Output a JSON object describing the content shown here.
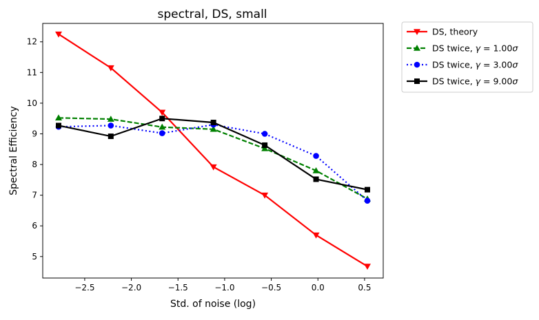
{
  "chart_data": {
    "type": "line",
    "title": "spectral, DS, small",
    "xlabel": "Std. of noise (log)",
    "ylabel": "Spectral Efficiency",
    "xlim": [
      -2.95,
      0.7
    ],
    "ylim": [
      4.3,
      12.6
    ],
    "x_ticks": [
      -2.5,
      -2.0,
      -1.5,
      -1.0,
      -0.5,
      0.0,
      0.5
    ],
    "x_tick_labels": [
      "−2.5",
      "−2.0",
      "−1.5",
      "−1.0",
      "−0.5",
      "0.0",
      "0.5"
    ],
    "y_ticks": [
      5,
      6,
      7,
      8,
      9,
      10,
      11,
      12
    ],
    "y_tick_labels": [
      "5",
      "6",
      "7",
      "8",
      "9",
      "10",
      "11",
      "12"
    ],
    "grid": false,
    "legend_position": "outside-top-right",
    "x": [
      -2.78,
      -2.22,
      -1.67,
      -1.12,
      -0.57,
      -0.02,
      0.53
    ],
    "series": [
      {
        "name": "DS, theory",
        "legend_pre": "DS, theory",
        "legend_var": "",
        "legend_val": "",
        "color": "#ff0000",
        "dash": "solid",
        "marker": "triangle-down",
        "values": [
          12.25,
          11.15,
          9.7,
          7.92,
          7.0,
          5.7,
          4.68
        ]
      },
      {
        "name": "DS twice, γ = 1.00σ",
        "legend_pre": "DS twice, ",
        "legend_var": "γ",
        "legend_val": " = 1.00",
        "color": "#008000",
        "dash": "dashed",
        "marker": "triangle-up",
        "values": [
          9.52,
          9.48,
          9.22,
          9.15,
          8.52,
          7.8,
          6.88
        ]
      },
      {
        "name": "DS twice, γ = 3.00σ",
        "legend_pre": "DS twice, ",
        "legend_var": "γ",
        "legend_val": " = 3.00",
        "color": "#0000ff",
        "dash": "dotted",
        "marker": "circle",
        "values": [
          9.23,
          9.27,
          9.02,
          9.3,
          9.0,
          8.28,
          6.82
        ]
      },
      {
        "name": "DS twice, γ = 9.00σ",
        "legend_pre": "DS twice, ",
        "legend_var": "γ",
        "legend_val": " = 9.00",
        "color": "#000000",
        "dash": "solid",
        "marker": "square",
        "values": [
          9.27,
          8.92,
          9.5,
          9.37,
          8.63,
          7.52,
          7.18
        ]
      }
    ],
    "legend_sigma": "σ"
  }
}
